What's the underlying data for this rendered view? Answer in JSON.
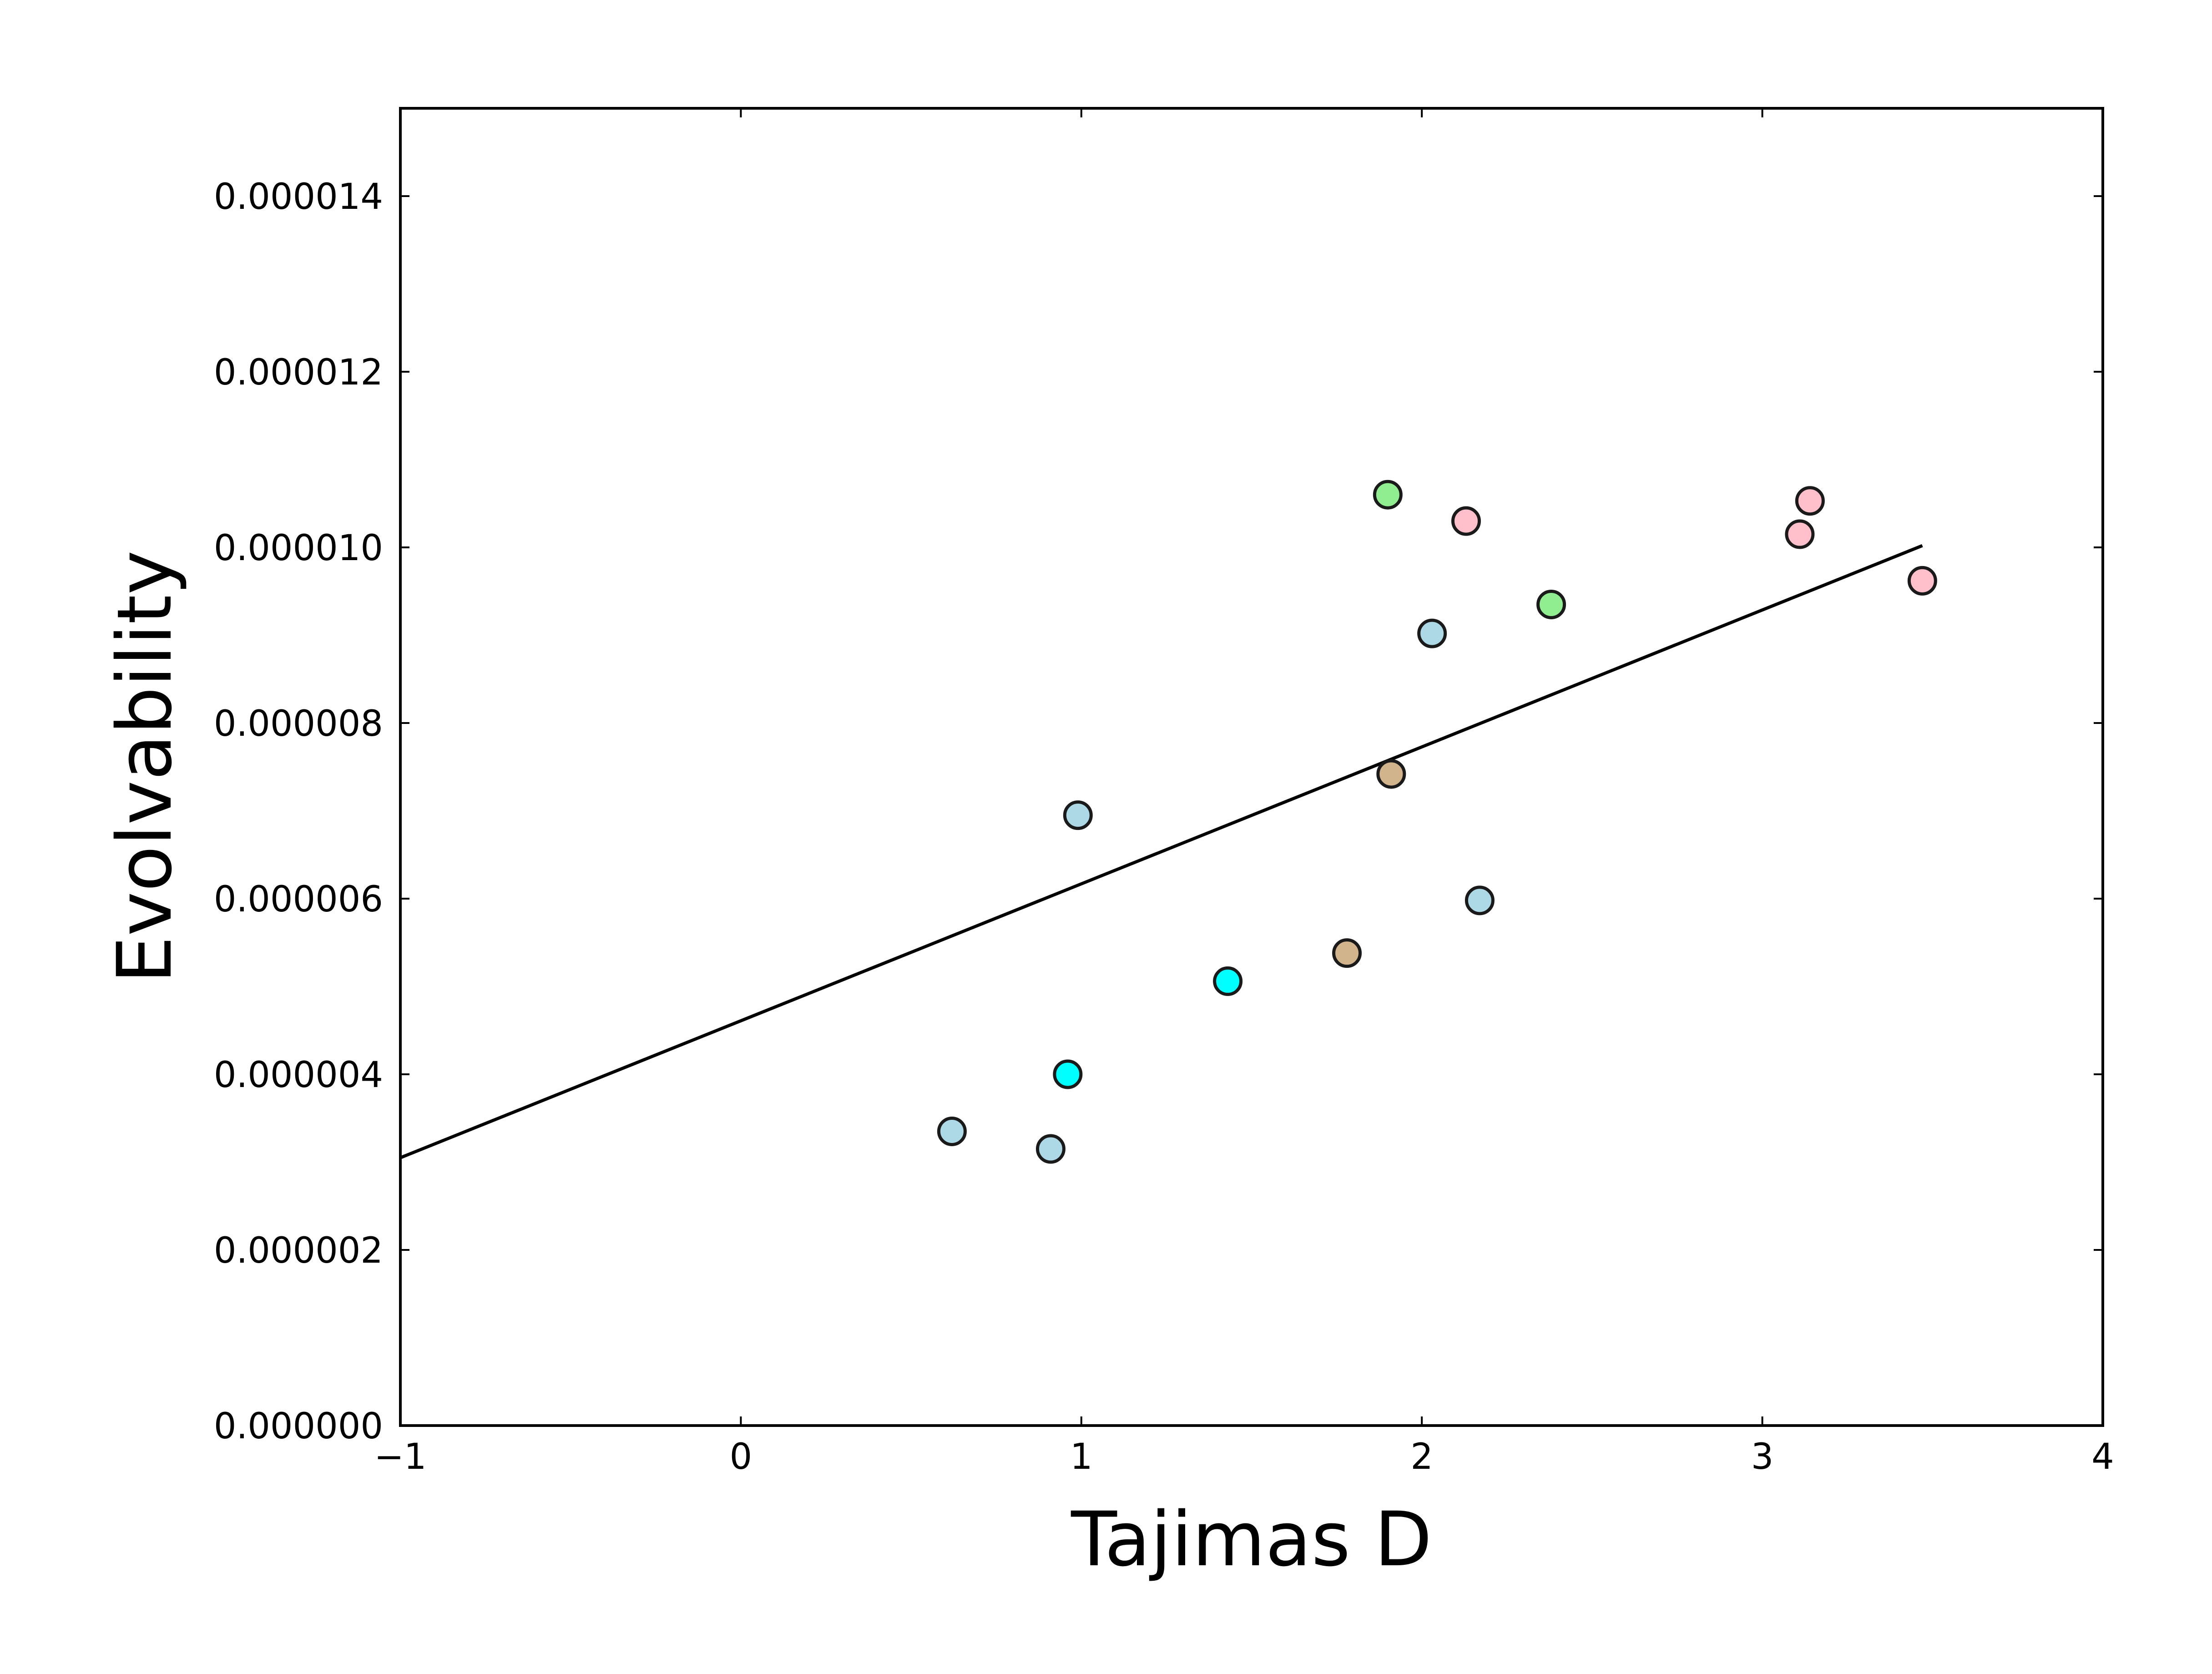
{
  "chart_data": {
    "type": "scatter",
    "title": "",
    "xlabel": "Tajimas D",
    "ylabel": "Evolvability",
    "xlim": [
      -1,
      4
    ],
    "ylim": [
      0,
      1.5e-05
    ],
    "xticks": [
      {
        "value": -1,
        "label": "−1"
      },
      {
        "value": 0,
        "label": "0"
      },
      {
        "value": 1,
        "label": "1"
      },
      {
        "value": 2,
        "label": "2"
      },
      {
        "value": 3,
        "label": "3"
      },
      {
        "value": 4,
        "label": "4"
      }
    ],
    "yticks": [
      {
        "value": 0,
        "label": "0.000000"
      },
      {
        "value": 2e-06,
        "label": "0.000002"
      },
      {
        "value": 4e-06,
        "label": "0.000004"
      },
      {
        "value": 6e-06,
        "label": "0.000006"
      },
      {
        "value": 8e-06,
        "label": "0.000008"
      },
      {
        "value": 1e-05,
        "label": "0.000010"
      },
      {
        "value": 1.2e-05,
        "label": "0.000012"
      },
      {
        "value": 1.4e-05,
        "label": "0.000014"
      }
    ],
    "grid": false,
    "legend": "none",
    "points": [
      {
        "x": 0.62,
        "y": 3.35e-06,
        "color": "#add8e6"
      },
      {
        "x": 0.91,
        "y": 3.15e-06,
        "color": "#add8e6"
      },
      {
        "x": 0.99,
        "y": 6.95e-06,
        "color": "#add8e6"
      },
      {
        "x": 0.96,
        "y": 4e-06,
        "color": "#00ffff"
      },
      {
        "x": 1.43,
        "y": 5.06e-06,
        "color": "#00ffff"
      },
      {
        "x": 1.78,
        "y": 5.38e-06,
        "color": "#d2b48c"
      },
      {
        "x": 1.91,
        "y": 7.42e-06,
        "color": "#d2b48c"
      },
      {
        "x": 1.9,
        "y": 1.06e-05,
        "color": "#90ee90"
      },
      {
        "x": 2.38,
        "y": 9.35e-06,
        "color": "#90ee90"
      },
      {
        "x": 2.03,
        "y": 9.02e-06,
        "color": "#add8e6"
      },
      {
        "x": 2.17,
        "y": 5.98e-06,
        "color": "#add8e6"
      },
      {
        "x": 2.13,
        "y": 1.03e-05,
        "color": "#ffc0cb"
      },
      {
        "x": 3.11,
        "y": 1.015e-05,
        "color": "#ffc0cb"
      },
      {
        "x": 3.14,
        "y": 1.053e-05,
        "color": "#ffc0cb"
      },
      {
        "x": 3.47,
        "y": 9.62e-06,
        "color": "#ffc0cb"
      }
    ],
    "fit_line": {
      "x": [
        -1,
        3.47
      ],
      "y": [
        3.05e-06,
        1.002e-05
      ],
      "color": "#000000"
    },
    "axis_color": "#000000",
    "marker_edge_color": "#1a1a1a"
  }
}
